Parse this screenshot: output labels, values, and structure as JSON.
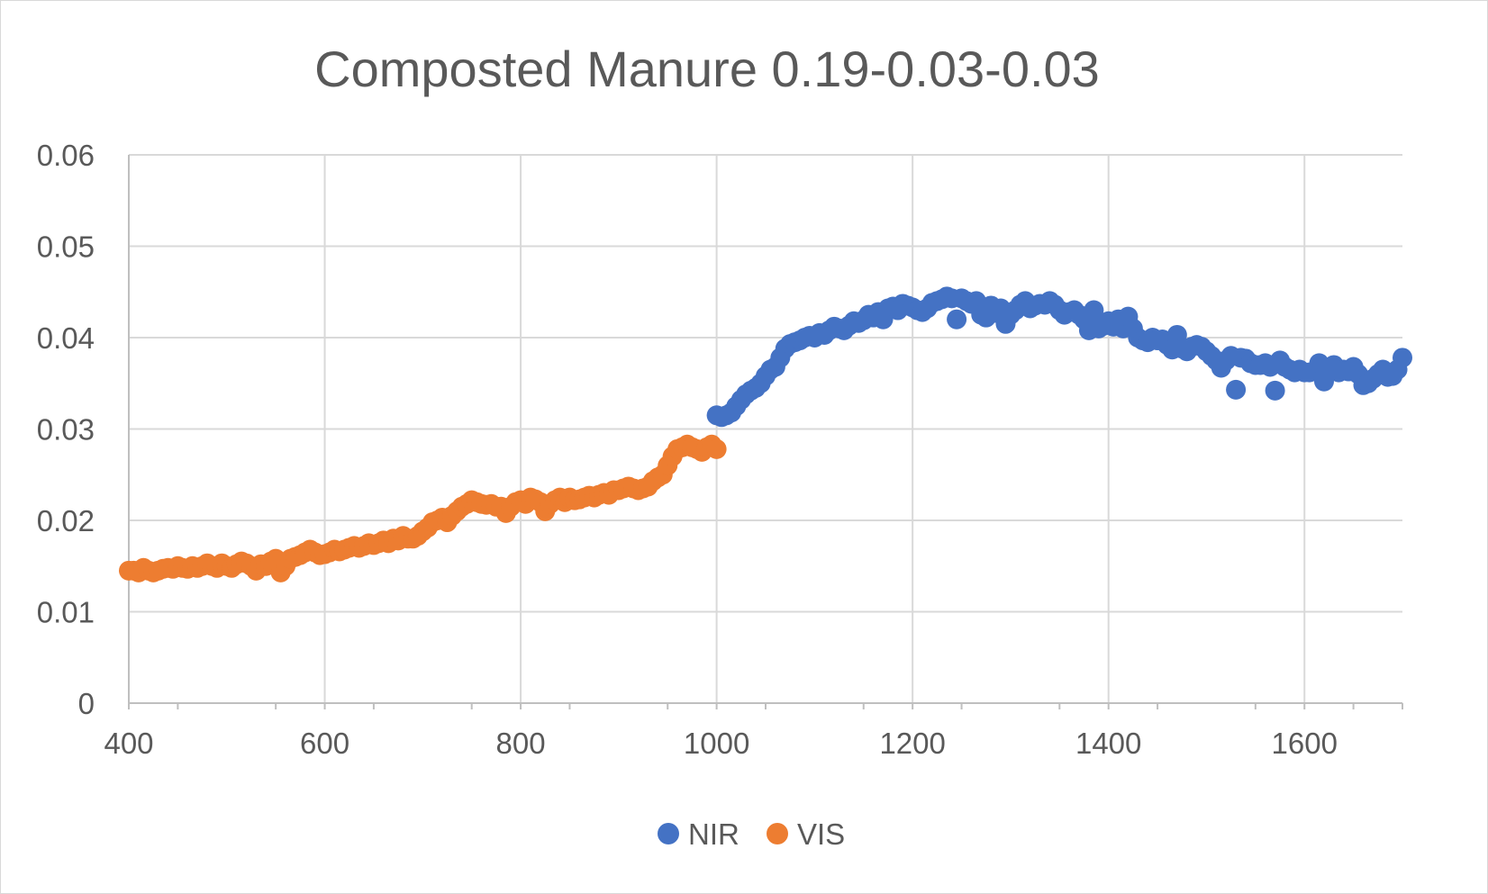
{
  "chart_data": {
    "type": "scatter",
    "title": "Composted Manure 0.19-0.03-0.03",
    "xlabel": "",
    "ylabel": "",
    "xlim": [
      400,
      1700
    ],
    "ylim": [
      0,
      0.06
    ],
    "x_ticks": [
      400,
      600,
      800,
      1000,
      1200,
      1400,
      1600
    ],
    "x_tick_labels": [
      "400",
      "600",
      "800",
      "1000",
      "1200",
      "1400",
      "1600"
    ],
    "y_ticks": [
      0,
      0.01,
      0.02,
      0.03,
      0.04,
      0.05,
      0.06
    ],
    "y_tick_labels": [
      "0",
      "0.01",
      "0.02",
      "0.03",
      "0.04",
      "0.05",
      "0.06"
    ],
    "grid": true,
    "legend_position": "bottom",
    "series": [
      {
        "name": "NIR",
        "color": "#4472c4",
        "points": [
          [
            1000,
            0.0315
          ],
          [
            1005,
            0.0313
          ],
          [
            1010,
            0.0315
          ],
          [
            1015,
            0.0318
          ],
          [
            1020,
            0.0325
          ],
          [
            1025,
            0.0332
          ],
          [
            1030,
            0.0338
          ],
          [
            1035,
            0.0342
          ],
          [
            1040,
            0.0345
          ],
          [
            1045,
            0.035
          ],
          [
            1050,
            0.0358
          ],
          [
            1055,
            0.0365
          ],
          [
            1060,
            0.0368
          ],
          [
            1065,
            0.0378
          ],
          [
            1070,
            0.0388
          ],
          [
            1075,
            0.0393
          ],
          [
            1080,
            0.0395
          ],
          [
            1085,
            0.0397
          ],
          [
            1090,
            0.04
          ],
          [
            1095,
            0.0402
          ],
          [
            1100,
            0.04
          ],
          [
            1105,
            0.0405
          ],
          [
            1110,
            0.0403
          ],
          [
            1115,
            0.0408
          ],
          [
            1120,
            0.0412
          ],
          [
            1125,
            0.041
          ],
          [
            1130,
            0.0408
          ],
          [
            1135,
            0.0413
          ],
          [
            1140,
            0.0418
          ],
          [
            1145,
            0.0416
          ],
          [
            1150,
            0.0419
          ],
          [
            1155,
            0.0425
          ],
          [
            1160,
            0.0422
          ],
          [
            1165,
            0.0428
          ],
          [
            1170,
            0.042
          ],
          [
            1175,
            0.0432
          ],
          [
            1180,
            0.0434
          ],
          [
            1185,
            0.043
          ],
          [
            1190,
            0.0437
          ],
          [
            1195,
            0.0435
          ],
          [
            1200,
            0.0433
          ],
          [
            1205,
            0.043
          ],
          [
            1210,
            0.0428
          ],
          [
            1215,
            0.0432
          ],
          [
            1220,
            0.0438
          ],
          [
            1225,
            0.044
          ],
          [
            1230,
            0.0442
          ],
          [
            1235,
            0.0445
          ],
          [
            1240,
            0.0443
          ],
          [
            1245,
            0.042
          ],
          [
            1250,
            0.0443
          ],
          [
            1255,
            0.044
          ],
          [
            1260,
            0.0437
          ],
          [
            1265,
            0.044
          ],
          [
            1270,
            0.0425
          ],
          [
            1275,
            0.0422
          ],
          [
            1280,
            0.0435
          ],
          [
            1285,
            0.0427
          ],
          [
            1290,
            0.0432
          ],
          [
            1295,
            0.0415
          ],
          [
            1300,
            0.0425
          ],
          [
            1305,
            0.043
          ],
          [
            1310,
            0.0436
          ],
          [
            1315,
            0.044
          ],
          [
            1320,
            0.0432
          ],
          [
            1325,
            0.0435
          ],
          [
            1330,
            0.0437
          ],
          [
            1335,
            0.0436
          ],
          [
            1340,
            0.044
          ],
          [
            1345,
            0.0436
          ],
          [
            1350,
            0.043
          ],
          [
            1355,
            0.0425
          ],
          [
            1360,
            0.0428
          ],
          [
            1365,
            0.043
          ],
          [
            1370,
            0.0425
          ],
          [
            1375,
            0.042
          ],
          [
            1380,
            0.0408
          ],
          [
            1385,
            0.043
          ],
          [
            1390,
            0.041
          ],
          [
            1395,
            0.0413
          ],
          [
            1400,
            0.0418
          ],
          [
            1405,
            0.0412
          ],
          [
            1410,
            0.042
          ],
          [
            1415,
            0.041
          ],
          [
            1420,
            0.0423
          ],
          [
            1425,
            0.041
          ],
          [
            1430,
            0.04
          ],
          [
            1435,
            0.0397
          ],
          [
            1440,
            0.0395
          ],
          [
            1445,
            0.04
          ],
          [
            1450,
            0.0397
          ],
          [
            1455,
            0.0398
          ],
          [
            1460,
            0.0392
          ],
          [
            1465,
            0.0387
          ],
          [
            1470,
            0.0403
          ],
          [
            1475,
            0.0388
          ],
          [
            1480,
            0.0385
          ],
          [
            1485,
            0.039
          ],
          [
            1490,
            0.0392
          ],
          [
            1495,
            0.039
          ],
          [
            1500,
            0.0385
          ],
          [
            1505,
            0.038
          ],
          [
            1510,
            0.0375
          ],
          [
            1515,
            0.0367
          ],
          [
            1520,
            0.0375
          ],
          [
            1525,
            0.038
          ],
          [
            1530,
            0.0343
          ],
          [
            1535,
            0.0378
          ],
          [
            1540,
            0.0377
          ],
          [
            1545,
            0.0372
          ],
          [
            1550,
            0.037
          ],
          [
            1555,
            0.037
          ],
          [
            1560,
            0.0372
          ],
          [
            1565,
            0.0368
          ],
          [
            1570,
            0.0342
          ],
          [
            1575,
            0.0375
          ],
          [
            1580,
            0.0368
          ],
          [
            1585,
            0.0365
          ],
          [
            1590,
            0.0362
          ],
          [
            1595,
            0.0365
          ],
          [
            1600,
            0.0362
          ],
          [
            1605,
            0.0362
          ],
          [
            1610,
            0.0363
          ],
          [
            1615,
            0.0372
          ],
          [
            1620,
            0.0352
          ],
          [
            1625,
            0.0365
          ],
          [
            1630,
            0.037
          ],
          [
            1635,
            0.0362
          ],
          [
            1640,
            0.0365
          ],
          [
            1645,
            0.0363
          ],
          [
            1650,
            0.0368
          ],
          [
            1655,
            0.036
          ],
          [
            1660,
            0.0348
          ],
          [
            1665,
            0.035
          ],
          [
            1670,
            0.0355
          ],
          [
            1675,
            0.036
          ],
          [
            1680,
            0.0365
          ],
          [
            1685,
            0.0357
          ],
          [
            1690,
            0.0358
          ],
          [
            1695,
            0.0365
          ],
          [
            1700,
            0.0378
          ]
        ]
      },
      {
        "name": "VIS",
        "color": "#ed7d31",
        "points": [
          [
            400,
            0.0145
          ],
          [
            405,
            0.0145
          ],
          [
            410,
            0.0143
          ],
          [
            415,
            0.0148
          ],
          [
            420,
            0.0145
          ],
          [
            425,
            0.0143
          ],
          [
            430,
            0.0145
          ],
          [
            435,
            0.0147
          ],
          [
            440,
            0.0148
          ],
          [
            445,
            0.0147
          ],
          [
            450,
            0.015
          ],
          [
            455,
            0.0148
          ],
          [
            460,
            0.0147
          ],
          [
            465,
            0.015
          ],
          [
            470,
            0.0148
          ],
          [
            475,
            0.015
          ],
          [
            480,
            0.0153
          ],
          [
            485,
            0.015
          ],
          [
            490,
            0.0148
          ],
          [
            495,
            0.0153
          ],
          [
            500,
            0.015
          ],
          [
            505,
            0.0148
          ],
          [
            510,
            0.0152
          ],
          [
            515,
            0.0155
          ],
          [
            520,
            0.0153
          ],
          [
            525,
            0.015
          ],
          [
            530,
            0.0145
          ],
          [
            535,
            0.0152
          ],
          [
            540,
            0.015
          ],
          [
            545,
            0.0155
          ],
          [
            550,
            0.0158
          ],
          [
            555,
            0.0143
          ],
          [
            560,
            0.015
          ],
          [
            565,
            0.0158
          ],
          [
            570,
            0.016
          ],
          [
            575,
            0.0162
          ],
          [
            580,
            0.0165
          ],
          [
            585,
            0.0168
          ],
          [
            590,
            0.0165
          ],
          [
            595,
            0.0162
          ],
          [
            600,
            0.0163
          ],
          [
            605,
            0.0165
          ],
          [
            610,
            0.0168
          ],
          [
            615,
            0.0166
          ],
          [
            620,
            0.0168
          ],
          [
            625,
            0.017
          ],
          [
            630,
            0.0172
          ],
          [
            635,
            0.017
          ],
          [
            640,
            0.0172
          ],
          [
            645,
            0.0175
          ],
          [
            650,
            0.0173
          ],
          [
            655,
            0.0175
          ],
          [
            660,
            0.0178
          ],
          [
            665,
            0.0175
          ],
          [
            670,
            0.018
          ],
          [
            675,
            0.0178
          ],
          [
            680,
            0.0183
          ],
          [
            685,
            0.018
          ],
          [
            690,
            0.018
          ],
          [
            695,
            0.0183
          ],
          [
            700,
            0.0188
          ],
          [
            705,
            0.0192
          ],
          [
            710,
            0.0198
          ],
          [
            715,
            0.02
          ],
          [
            720,
            0.0203
          ],
          [
            725,
            0.0198
          ],
          [
            730,
            0.0205
          ],
          [
            735,
            0.021
          ],
          [
            740,
            0.0215
          ],
          [
            745,
            0.0218
          ],
          [
            750,
            0.0222
          ],
          [
            755,
            0.022
          ],
          [
            760,
            0.0218
          ],
          [
            765,
            0.0217
          ],
          [
            770,
            0.0218
          ],
          [
            775,
            0.0215
          ],
          [
            780,
            0.0215
          ],
          [
            785,
            0.0208
          ],
          [
            790,
            0.0215
          ],
          [
            795,
            0.022
          ],
          [
            800,
            0.0222
          ],
          [
            805,
            0.0218
          ],
          [
            810,
            0.0225
          ],
          [
            815,
            0.0223
          ],
          [
            820,
            0.022
          ],
          [
            825,
            0.021
          ],
          [
            830,
            0.0218
          ],
          [
            835,
            0.0222
          ],
          [
            840,
            0.0225
          ],
          [
            845,
            0.022
          ],
          [
            850,
            0.0225
          ],
          [
            855,
            0.0222
          ],
          [
            860,
            0.0223
          ],
          [
            865,
            0.0225
          ],
          [
            870,
            0.0227
          ],
          [
            875,
            0.0225
          ],
          [
            880,
            0.0228
          ],
          [
            885,
            0.023
          ],
          [
            890,
            0.0228
          ],
          [
            895,
            0.0233
          ],
          [
            900,
            0.0233
          ],
          [
            905,
            0.0235
          ],
          [
            910,
            0.0237
          ],
          [
            915,
            0.0235
          ],
          [
            920,
            0.0233
          ],
          [
            925,
            0.0235
          ],
          [
            930,
            0.0237
          ],
          [
            935,
            0.0243
          ],
          [
            940,
            0.0247
          ],
          [
            945,
            0.025
          ],
          [
            950,
            0.026
          ],
          [
            955,
            0.027
          ],
          [
            960,
            0.0278
          ],
          [
            965,
            0.028
          ],
          [
            970,
            0.0283
          ],
          [
            975,
            0.028
          ],
          [
            980,
            0.0278
          ],
          [
            985,
            0.0275
          ],
          [
            990,
            0.028
          ],
          [
            995,
            0.0283
          ],
          [
            1000,
            0.0278
          ]
        ]
      }
    ]
  }
}
